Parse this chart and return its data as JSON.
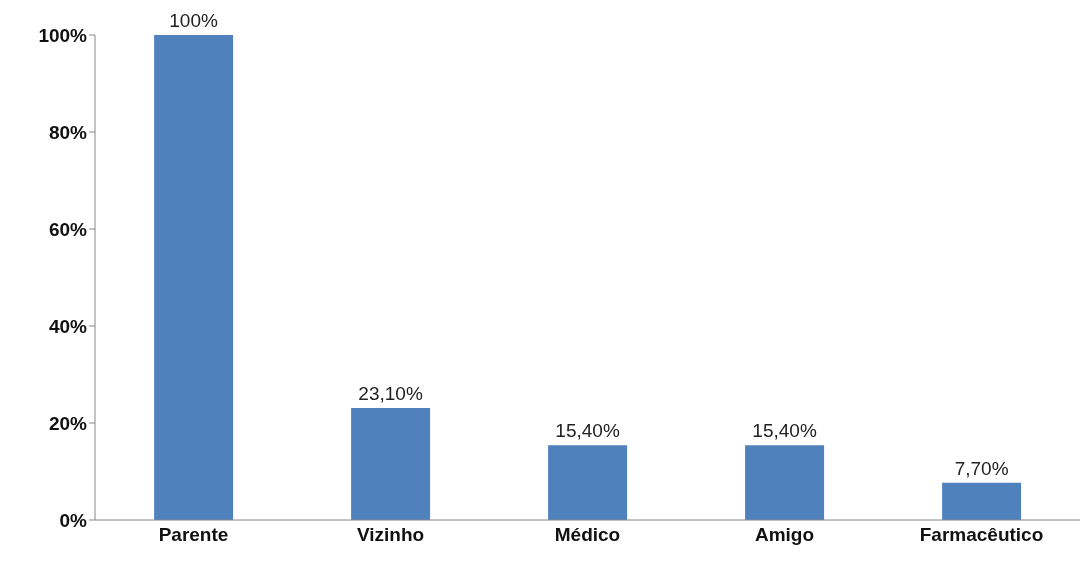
{
  "chart_data": {
    "type": "bar",
    "categories": [
      "Parente",
      "Vizinho",
      "Médico",
      "Amigo",
      "Farmacêutico"
    ],
    "values": [
      100,
      23.1,
      15.4,
      15.4,
      7.7
    ],
    "value_labels": [
      "100%",
      "23,10%",
      "15,40%",
      "15,40%",
      "7,70%"
    ],
    "color": "#4f81bd",
    "ylim": [
      0,
      100
    ],
    "yticks": [
      {
        "value": 0,
        "label": "0%"
      },
      {
        "value": 20,
        "label": "20%"
      },
      {
        "value": 40,
        "label": "40%"
      },
      {
        "value": 60,
        "label": "60%"
      },
      {
        "value": 80,
        "label": "80%"
      },
      {
        "value": 100,
        "label": "100%"
      }
    ],
    "grid": false
  }
}
